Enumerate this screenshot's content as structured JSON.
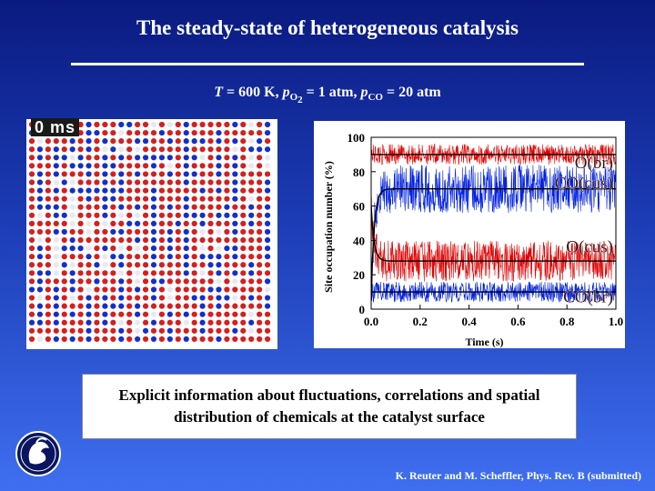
{
  "slide": {
    "title": "The steady-state of heterogeneous catalysis",
    "conditions": {
      "T_symbol": "T",
      "T_value": " = 600 K,  ",
      "p_symbol": "p",
      "o2_sub": "O",
      "o2_subsub": "2",
      "o2_value": " = 1 atm,  ",
      "co_sub": "CO",
      "co_value": " = 20 atm"
    },
    "lattice_time": "0 ms",
    "info_text": "Explicit information about fluctuations, correlations and spatial distribution of chemicals at the catalyst surface",
    "citation": "K. Reuter and M. Scheffler, Phys. Rev. B (submitted)",
    "logo_icon": "minerva-logo-icon"
  },
  "chart_data": {
    "type": "line",
    "ylabel": "Site occupation number (%)",
    "xlabel": "Time (s)",
    "xlim": [
      0.0,
      1.0
    ],
    "ylim": [
      0,
      100
    ],
    "x_ticks": [
      "0.0",
      "0.2",
      "0.4",
      "0.6",
      "0.8",
      "1.0"
    ],
    "y_ticks": [
      "0",
      "20",
      "40",
      "60",
      "80",
      "100"
    ],
    "series": [
      {
        "name": "O(br)",
        "color": "#e00000",
        "start": 90,
        "steady": 90,
        "noise": 6
      },
      {
        "name": "CO(cus)",
        "color": "#0020e0",
        "start": 5,
        "steady": 70,
        "noise": 14
      },
      {
        "name": "O(cus)",
        "color": "#e00000",
        "start": 60,
        "steady": 28,
        "noise": 12
      },
      {
        "name": "CO(br)",
        "color": "#0020e0",
        "start": 10,
        "steady": 10,
        "noise": 6
      }
    ],
    "legend": [
      "O(br)",
      "CO(cus)",
      "O(cus)",
      "CO(br)"
    ]
  }
}
